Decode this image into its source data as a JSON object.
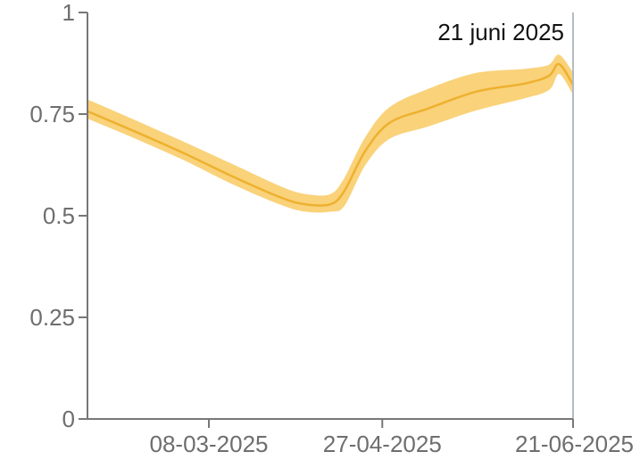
{
  "chart_data": {
    "type": "band-line",
    "x": [
      "2025-02-01",
      "2025-02-15",
      "2025-03-01",
      "2025-03-15",
      "2025-03-29",
      "2025-04-05",
      "2025-04-12",
      "2025-04-16",
      "2025-04-22",
      "2025-04-29",
      "2025-05-10",
      "2025-05-24",
      "2025-06-07",
      "2025-06-14",
      "2025-06-17",
      "2025-06-21"
    ],
    "values": [
      0.757,
      0.706,
      0.653,
      0.596,
      0.544,
      0.528,
      0.528,
      0.56,
      0.658,
      0.728,
      0.763,
      0.805,
      0.825,
      0.844,
      0.873,
      0.822
    ],
    "upper": [
      0.785,
      0.733,
      0.68,
      0.625,
      0.57,
      0.552,
      0.552,
      0.59,
      0.69,
      0.765,
      0.81,
      0.85,
      0.86,
      0.87,
      0.895,
      0.85
    ],
    "lower": [
      0.74,
      0.69,
      0.637,
      0.578,
      0.527,
      0.511,
      0.511,
      0.525,
      0.625,
      0.69,
      0.72,
      0.76,
      0.79,
      0.81,
      0.85,
      0.8
    ],
    "color": "#eeb12f",
    "band_color": "#f9d27a",
    "xlim": [
      "2025-02-01",
      "2025-06-21"
    ],
    "xticks": [
      {
        "value": "2025-03-08",
        "label": "08-03-2025"
      },
      {
        "value": "2025-04-27",
        "label": "27-04-2025"
      },
      {
        "value": "2025-06-21",
        "label": "21-06-2025"
      }
    ],
    "ylim": [
      0,
      1
    ],
    "yticks": [
      0,
      0.25,
      0.5,
      0.75,
      1
    ],
    "annotation": {
      "text": "21 juni 2025",
      "x": "2025-06-21"
    }
  }
}
